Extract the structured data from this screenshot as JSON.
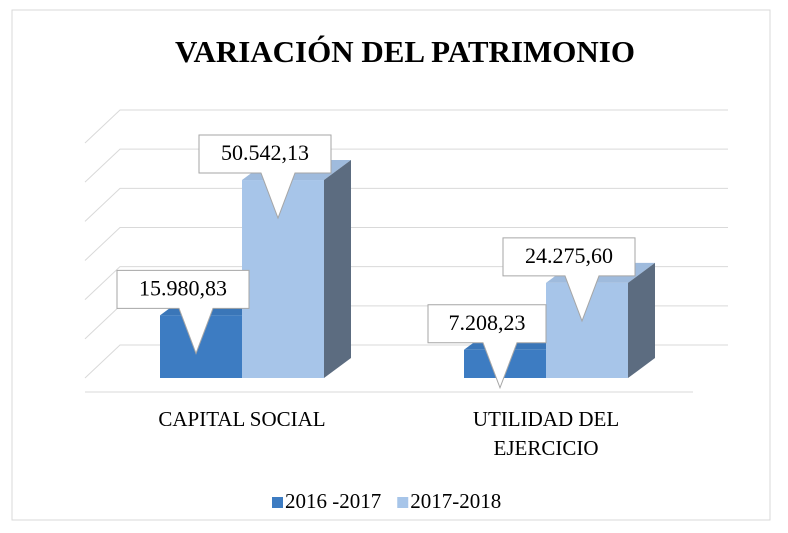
{
  "chart_data": {
    "type": "bar3d",
    "title": "VARIACIÓN DEL PATRIMONIO",
    "categories": [
      "CAPITAL SOCIAL",
      "UTILIDAD DEL EJERCICIO"
    ],
    "series": [
      {
        "name": "2016 -2017",
        "color": "#3d7cc2",
        "values": [
          15980.83,
          7208.23
        ],
        "value_labels": [
          "15.980,83",
          "7.208,23"
        ]
      },
      {
        "name": "2017-2018",
        "color": "#a7c5e9",
        "values": [
          50542.13,
          24275.6
        ],
        "value_labels": [
          "50.542,13",
          "24.275,60"
        ]
      }
    ],
    "ylim": [
      0,
      60000
    ],
    "yticks": [
      0,
      10000,
      20000,
      30000,
      40000,
      50000,
      60000
    ],
    "grid": true,
    "legend": "bottom"
  }
}
